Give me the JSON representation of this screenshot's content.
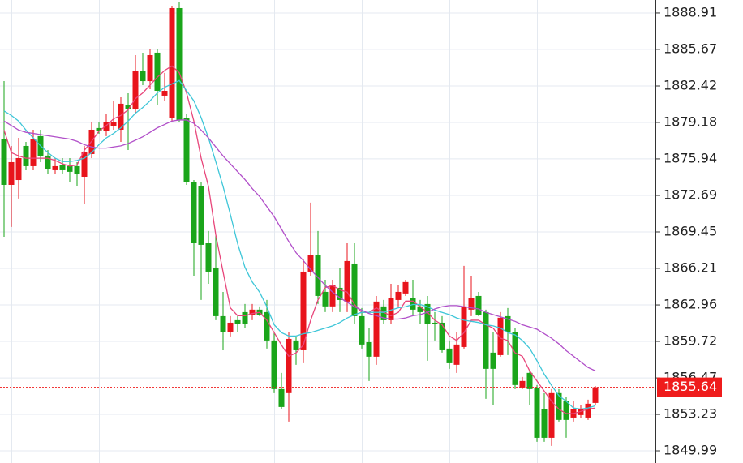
{
  "chart_data": {
    "type": "candlestick",
    "up_color": "#e8141c",
    "down_color": "#1aa51a",
    "open": [
      1877.67,
      1873.63,
      1874.06,
      1877.09,
      1875.29,
      1877.96,
      1876.23,
      1874.93,
      1875.43,
      1875.29,
      1875.29,
      1874.35,
      1876.37,
      1878.68,
      1878.39,
      1878.89,
      1878.53,
      1880.69,
      1880.33,
      1883.79,
      1882.85,
      1885.38,
      1881.56,
      1879.61,
      1889.34,
      1879.61,
      1873.85,
      1873.49,
      1868.44,
      1866.28,
      1861.96,
      1860.52,
      1861.6,
      1862.32,
      1862.1,
      1862.54,
      1862.32,
      1859.8,
      1855.48,
      1855.12,
      1859.8,
      1858.93,
      1865.92,
      1867.36,
      1864.12,
      1862.83,
      1864.48,
      1863.26,
      1866.64,
      1861.96,
      1859.65,
      1858.36,
      1862.83,
      1861.6,
      1863.4,
      1863.98,
      1863.55,
      1862.83,
      1863.04,
      1861.38,
      1861.38,
      1859.08,
      1857.64,
      1859.22,
      1862.54,
      1863.76,
      1862.32,
      1858.72,
      1858.5,
      1861.96,
      1860.52,
      1855.62,
      1856.92,
      1855.62,
      1853.67,
      1851.15,
      1855.12,
      1854.4,
      1852.95,
      1853.17,
      1852.95,
      1854.25
    ],
    "high": [
      1882.85,
      1877.09,
      1877.81,
      1877.45,
      1878.53,
      1878.53,
      1876.73,
      1876.01,
      1876.01,
      1876.01,
      1875.65,
      1877.09,
      1879.25,
      1879.25,
      1879.97,
      1881.05,
      1881.41,
      1881.77,
      1885.16,
      1885.38,
      1885.74,
      1885.74,
      1883.58,
      1889.48,
      1889.92,
      1879.97,
      1874.06,
      1873.85,
      1869.53,
      1869.17,
      1864.12,
      1861.96,
      1861.96,
      1863.04,
      1863.04,
      1862.83,
      1863.4,
      1860.52,
      1856.92,
      1860.52,
      1860.16,
      1867.0,
      1872.05,
      1869.53,
      1865.2,
      1865.2,
      1866.28,
      1868.44,
      1868.44,
      1862.68,
      1860.88,
      1863.76,
      1863.4,
      1864.84,
      1864.7,
      1865.2,
      1865.2,
      1863.4,
      1863.76,
      1862.32,
      1861.96,
      1859.8,
      1860.52,
      1866.43,
      1865.56,
      1864.12,
      1862.54,
      1860.52,
      1862.32,
      1862.68,
      1860.88,
      1856.56,
      1857.06,
      1855.84,
      1855.12,
      1855.48,
      1855.48,
      1854.76,
      1854.4,
      1854.03,
      1854.54,
      1855.75
    ],
    "low": [
      1869.02,
      1869.89,
      1872.41,
      1874.93,
      1874.93,
      1875.65,
      1874.57,
      1874.57,
      1874.57,
      1873.85,
      1873.49,
      1871.9,
      1876.01,
      1878.17,
      1877.96,
      1878.53,
      1877.45,
      1876.73,
      1879.97,
      1882.49,
      1882.13,
      1880.69,
      1881.05,
      1879.25,
      1879.25,
      1873.63,
      1865.56,
      1863.4,
      1864.84,
      1861.6,
      1858.93,
      1860.16,
      1860.52,
      1860.88,
      1861.6,
      1861.96,
      1859.08,
      1855.12,
      1853.67,
      1852.59,
      1857.64,
      1857.78,
      1865.56,
      1863.04,
      1862.32,
      1862.32,
      1862.32,
      1862.32,
      1861.24,
      1859.08,
      1856.2,
      1857.64,
      1861.24,
      1861.24,
      1862.83,
      1863.76,
      1861.96,
      1861.24,
      1858.0,
      1859.8,
      1858.72,
      1857.28,
      1856.92,
      1859.08,
      1861.96,
      1861.96,
      1854.61,
      1854.03,
      1858.36,
      1858.5,
      1855.48,
      1855.48,
      1854.03,
      1850.79,
      1850.79,
      1850.43,
      1852.59,
      1851.15,
      1852.59,
      1852.95,
      1852.74,
      1854.03
    ],
    "close": [
      1873.63,
      1875.65,
      1876.01,
      1875.29,
      1877.67,
      1876.15,
      1875.07,
      1875.29,
      1874.93,
      1874.79,
      1874.57,
      1876.51,
      1878.53,
      1878.39,
      1879.25,
      1879.25,
      1880.84,
      1880.33,
      1883.79,
      1882.85,
      1885.16,
      1881.99,
      1881.99,
      1889.34,
      1879.4,
      1873.85,
      1868.44,
      1868.3,
      1865.92,
      1861.96,
      1860.52,
      1861.38,
      1861.24,
      1861.24,
      1862.54,
      1862.1,
      1859.8,
      1855.48,
      1853.89,
      1859.94,
      1858.93,
      1865.92,
      1867.36,
      1863.76,
      1862.83,
      1864.7,
      1863.4,
      1866.86,
      1861.96,
      1859.44,
      1858.36,
      1863.26,
      1861.6,
      1863.55,
      1864.12,
      1864.99,
      1862.54,
      1862.32,
      1861.24,
      1861.24,
      1858.93,
      1857.78,
      1859.44,
      1862.83,
      1863.55,
      1862.1,
      1857.28,
      1857.28,
      1861.82,
      1860.52,
      1855.84,
      1856.2,
      1855.48,
      1851.15,
      1851.15,
      1855.12,
      1852.74,
      1852.74,
      1853.67,
      1853.67,
      1854.18,
      1855.64
    ],
    "lines": [
      {
        "color": "#e8457a",
        "values": [
          1878.5,
          1876.5,
          1876.2,
          1876.0,
          1876.0,
          1876.0,
          1876.0,
          1875.8,
          1875.5,
          1875.3,
          1875.4,
          1876.7,
          1877.5,
          1878.4,
          1878.9,
          1879.5,
          1879.8,
          1880.3,
          1881.3,
          1881.8,
          1882.5,
          1883.2,
          1883.8,
          1884.2,
          1883.6,
          1881.8,
          1879.3,
          1876.0,
          1873.5,
          1869.2,
          1865.9,
          1862.7,
          1862.0,
          1862.0,
          1862.2,
          1862.3,
          1861.6,
          1860.5,
          1859.4,
          1858.4,
          1858.7,
          1859.4,
          1861.6,
          1863.4,
          1864.5,
          1864.7,
          1864.3,
          1864.1,
          1863.0,
          1862.3,
          1862.3,
          1862.7,
          1862.3,
          1862.0,
          1862.3,
          1863.3,
          1863.3,
          1862.8,
          1862.3,
          1861.6,
          1861.2,
          1860.2,
          1859.8,
          1860.5,
          1861.6,
          1861.6,
          1861.2,
          1860.9,
          1860.0,
          1859.8,
          1858.7,
          1858.4,
          1857.1,
          1856.2,
          1855.3,
          1854.4,
          1853.7,
          1853.3,
          1853.3,
          1853.5,
          1853.7,
          1853.8
        ]
      },
      {
        "color": "#3ec6d8",
        "values": [
          1880.2,
          1879.8,
          1879.3,
          1878.5,
          1877.8,
          1877.1,
          1876.5,
          1876.0,
          1875.7,
          1875.7,
          1875.8,
          1876.0,
          1876.5,
          1877.2,
          1877.8,
          1878.2,
          1878.7,
          1879.3,
          1880.0,
          1880.5,
          1881.1,
          1881.8,
          1882.3,
          1882.6,
          1882.9,
          1882.0,
          1881.1,
          1879.6,
          1877.8,
          1875.7,
          1873.5,
          1871.0,
          1868.4,
          1866.3,
          1865.0,
          1864.1,
          1862.8,
          1861.2,
          1860.5,
          1860.2,
          1860.2,
          1860.4,
          1860.5,
          1860.7,
          1860.9,
          1861.1,
          1861.4,
          1861.8,
          1862.1,
          1862.3,
          1862.3,
          1862.3,
          1862.3,
          1862.5,
          1862.7,
          1862.8,
          1863.0,
          1863.0,
          1862.8,
          1862.5,
          1862.3,
          1862.1,
          1861.8,
          1861.6,
          1861.5,
          1861.4,
          1861.2,
          1861.1,
          1860.9,
          1860.5,
          1860.3,
          1859.8,
          1859.1,
          1858.0,
          1856.8,
          1855.8,
          1854.9,
          1854.4,
          1853.8,
          1853.7,
          1853.8,
          1854.0
        ]
      },
      {
        "color": "#b14fc9",
        "values": [
          1879.3,
          1878.9,
          1878.5,
          1878.3,
          1878.2,
          1878.1,
          1878.0,
          1877.9,
          1877.8,
          1877.7,
          1877.5,
          1877.2,
          1877.0,
          1876.9,
          1876.9,
          1877.0,
          1877.1,
          1877.3,
          1877.6,
          1877.9,
          1878.3,
          1878.7,
          1879.0,
          1879.3,
          1879.4,
          1879.4,
          1879.1,
          1878.5,
          1877.8,
          1877.0,
          1876.2,
          1875.5,
          1874.8,
          1874.1,
          1873.3,
          1872.6,
          1871.7,
          1870.8,
          1869.7,
          1868.6,
          1867.6,
          1866.9,
          1866.1,
          1865.4,
          1864.7,
          1864.1,
          1863.6,
          1863.2,
          1862.8,
          1862.5,
          1862.2,
          1862.0,
          1861.8,
          1861.7,
          1861.7,
          1861.8,
          1862.0,
          1862.1,
          1862.3,
          1862.6,
          1862.8,
          1862.9,
          1862.9,
          1862.8,
          1862.7,
          1862.6,
          1862.3,
          1862.1,
          1861.9,
          1861.7,
          1861.5,
          1861.2,
          1861.0,
          1860.8,
          1860.4,
          1860.0,
          1859.5,
          1858.9,
          1858.4,
          1857.9,
          1857.4,
          1857.1
        ]
      }
    ],
    "last_price": 1855.64,
    "last_price_color": "#ef1c1c",
    "ylim": [
      1848.91,
      1890.06
    ],
    "yticks": [
      1888.91,
      1885.67,
      1882.42,
      1879.18,
      1875.94,
      1872.69,
      1869.45,
      1866.21,
      1862.96,
      1859.72,
      1856.47,
      1853.23,
      1849.99
    ],
    "grid": true
  }
}
